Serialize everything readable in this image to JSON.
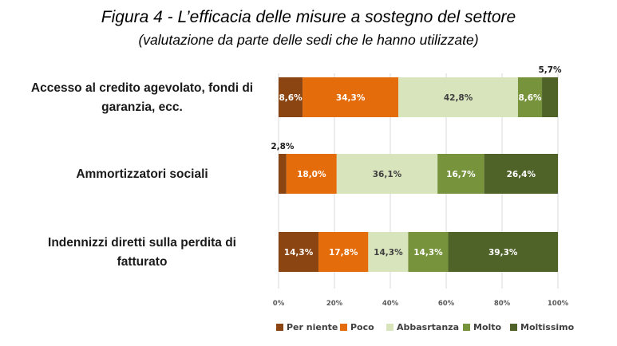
{
  "title": "Figura 4 - L’efficacia delle misure a sostegno del settore",
  "subtitle": "(valutazione da parte delle sedi che le hanno utilizzate)",
  "chart_data": {
    "type": "bar",
    "orientation": "horizontal",
    "stacked": true,
    "percent_stacked": true,
    "title": "Figura 4 - L’efficacia delle misure a sostegno del settore",
    "subtitle": "(valutazione da parte delle sedi che le hanno utilizzate)",
    "categories": [
      [
        "Accesso al credito agevolato, fondi di",
        "garanzia, ecc."
      ],
      [
        "Ammortizzatori sociali"
      ],
      [
        "Indennizzi diretti sulla perdita di",
        "fatturato"
      ]
    ],
    "series": [
      {
        "name": "Per niente",
        "color": "#8B4513",
        "text_color": "#ffffff",
        "values": [
          8.6,
          2.8,
          14.3
        ],
        "labels": [
          "8,6%",
          "2,8%",
          "14,3%"
        ]
      },
      {
        "name": "Poco",
        "color": "#E46C0A",
        "text_color": "#ffffff",
        "values": [
          34.3,
          18.0,
          17.8
        ],
        "labels": [
          "34,3%",
          "18,0%",
          "17,8%"
        ]
      },
      {
        "name": "Abbasrtanza",
        "color": "#D8E4BC",
        "text_color": "#404040",
        "values": [
          42.8,
          36.1,
          14.3
        ],
        "labels": [
          "42,8%",
          "36,1%",
          "14,3%"
        ]
      },
      {
        "name": "Molto",
        "color": "#77933C",
        "text_color": "#ffffff",
        "values": [
          8.6,
          16.7,
          14.3
        ],
        "labels": [
          "8,6%",
          "16,7%",
          "14,3%"
        ]
      },
      {
        "name": "Moltissimo",
        "color": "#4F6228",
        "text_color": "#ffffff",
        "values": [
          5.7,
          26.4,
          39.3
        ],
        "labels": [
          "5,7%",
          "26,4%",
          "39,3%"
        ]
      }
    ],
    "outside_labels": [
      {
        "category": 0,
        "series": 4
      },
      {
        "category": 1,
        "series": 0
      }
    ],
    "xlim": [
      0,
      100
    ],
    "xticks": [
      0,
      20,
      40,
      60,
      80,
      100
    ],
    "xtick_labels": [
      "0%",
      "20%",
      "40%",
      "60%",
      "80%",
      "100%"
    ],
    "grid": true,
    "legend_position": "bottom"
  }
}
